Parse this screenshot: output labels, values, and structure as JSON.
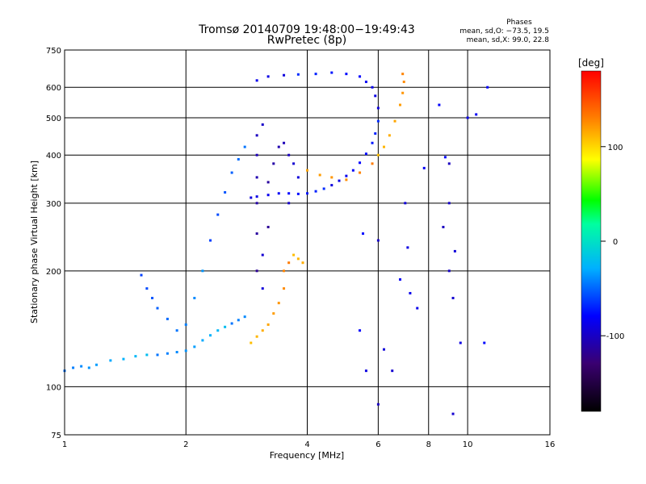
{
  "chart_data": {
    "type": "scatter",
    "title": "Tromsø 20140709 19:48:00−19:49:43",
    "subtitle": "RwPretec (8p)",
    "xlabel": "Frequency [MHz]",
    "ylabel": "Stationary phase Virtual Height [km]",
    "x_scale": "log",
    "y_scale": "log",
    "xlim": [
      1,
      16
    ],
    "ylim": [
      75,
      750
    ],
    "x_ticks": [
      1,
      2,
      4,
      6,
      8,
      10,
      16
    ],
    "y_ticks": [
      75,
      100,
      200,
      300,
      400,
      500,
      600,
      750
    ],
    "grid": true,
    "phase_box": {
      "title": "Phases",
      "line1": "mean, sd,O: −73.5, 19.5",
      "line2": "mean, sd,X:  99.0, 22.8"
    },
    "colorbar": {
      "label": "[deg]",
      "ticks": [
        100,
        0,
        -100
      ],
      "range": [
        -180,
        180
      ],
      "colormap": "rainbow"
    },
    "series": [
      {
        "trace": "lower",
        "phase_deg": -35,
        "points": [
          [
            1.0,
            110
          ],
          [
            1.05,
            112
          ],
          [
            1.1,
            113
          ],
          [
            1.15,
            112
          ],
          [
            1.2,
            114
          ],
          [
            1.3,
            117
          ],
          [
            1.4,
            118
          ],
          [
            1.5,
            120
          ],
          [
            1.6,
            121
          ],
          [
            1.7,
            121
          ],
          [
            1.8,
            122
          ],
          [
            1.9,
            123
          ],
          [
            2.0,
            124
          ],
          [
            2.1,
            127
          ],
          [
            2.2,
            132
          ],
          [
            2.3,
            136
          ],
          [
            2.4,
            140
          ],
          [
            2.5,
            143
          ],
          [
            2.6,
            146
          ],
          [
            2.7,
            149
          ],
          [
            2.8,
            152
          ]
        ]
      },
      {
        "trace": "upper",
        "phase_deg": -80,
        "points": [
          [
            2.9,
            310
          ],
          [
            3.0,
            312
          ],
          [
            3.2,
            315
          ],
          [
            3.4,
            318
          ],
          [
            3.6,
            318
          ],
          [
            3.8,
            317
          ],
          [
            4.0,
            318
          ],
          [
            4.2,
            322
          ],
          [
            4.4,
            327
          ],
          [
            4.6,
            334
          ],
          [
            4.8,
            343
          ],
          [
            5.0,
            353
          ],
          [
            5.2,
            365
          ],
          [
            5.4,
            382
          ],
          [
            5.6,
            403
          ],
          [
            5.8,
            430
          ],
          [
            5.9,
            455
          ],
          [
            6.0,
            490
          ],
          [
            6.0,
            530
          ],
          [
            5.9,
            570
          ],
          [
            5.8,
            600
          ],
          [
            5.6,
            620
          ],
          [
            5.4,
            640
          ],
          [
            5.0,
            650
          ],
          [
            4.6,
            655
          ],
          [
            4.2,
            650
          ],
          [
            3.8,
            648
          ],
          [
            3.5,
            645
          ],
          [
            3.2,
            640
          ],
          [
            3.0,
            625
          ]
        ]
      },
      {
        "trace": "scattered",
        "phase_deg": -50,
        "points": [
          [
            1.55,
            195
          ],
          [
            1.6,
            180
          ],
          [
            1.65,
            170
          ],
          [
            1.7,
            160
          ],
          [
            1.8,
            150
          ],
          [
            1.9,
            140
          ],
          [
            2.0,
            145
          ],
          [
            2.1,
            170
          ],
          [
            2.2,
            200
          ],
          [
            2.3,
            240
          ],
          [
            2.4,
            280
          ],
          [
            2.5,
            320
          ],
          [
            2.6,
            360
          ],
          [
            2.7,
            390
          ],
          [
            2.8,
            420
          ]
        ]
      },
      {
        "trace": "dense-vertical",
        "phase_deg": -105,
        "points": [
          [
            3.0,
            200
          ],
          [
            3.0,
            250
          ],
          [
            3.0,
            300
          ],
          [
            3.0,
            350
          ],
          [
            3.0,
            400
          ],
          [
            3.0,
            450
          ],
          [
            3.1,
            480
          ],
          [
            3.1,
            220
          ],
          [
            3.1,
            180
          ],
          [
            3.2,
            260
          ],
          [
            3.2,
            340
          ],
          [
            3.3,
            380
          ],
          [
            3.4,
            420
          ],
          [
            3.5,
            430
          ],
          [
            3.6,
            400
          ],
          [
            3.6,
            300
          ],
          [
            3.7,
            380
          ],
          [
            3.8,
            350
          ]
        ]
      },
      {
        "trace": "x-mode",
        "phase_deg": 120,
        "points": [
          [
            2.9,
            130
          ],
          [
            3.0,
            135
          ],
          [
            3.1,
            140
          ],
          [
            3.2,
            145
          ],
          [
            3.3,
            155
          ],
          [
            3.4,
            165
          ],
          [
            3.5,
            180
          ],
          [
            3.5,
            200
          ],
          [
            3.6,
            210
          ],
          [
            3.7,
            220
          ],
          [
            3.8,
            215
          ],
          [
            3.9,
            210
          ],
          [
            4.0,
            365
          ],
          [
            4.3,
            355
          ],
          [
            4.6,
            350
          ],
          [
            5.0,
            345
          ],
          [
            5.4,
            360
          ],
          [
            5.8,
            380
          ],
          [
            6.0,
            400
          ],
          [
            6.2,
            420
          ],
          [
            6.4,
            450
          ],
          [
            6.6,
            490
          ],
          [
            6.8,
            540
          ],
          [
            6.9,
            580
          ],
          [
            6.95,
            620
          ],
          [
            6.9,
            650
          ]
        ]
      },
      {
        "trace": "sparse",
        "phase_deg": -90,
        "points": [
          [
            6.0,
            90
          ],
          [
            6.0,
            240
          ],
          [
            6.5,
            110
          ],
          [
            7.0,
            300
          ],
          [
            7.1,
            230
          ],
          [
            7.5,
            160
          ],
          [
            7.8,
            370
          ],
          [
            8.5,
            540
          ],
          [
            8.8,
            395
          ],
          [
            9.0,
            380
          ],
          [
            9.0,
            300
          ],
          [
            9.2,
            85
          ],
          [
            9.3,
            225
          ],
          [
            9.6,
            130
          ],
          [
            10.0,
            500
          ],
          [
            10.5,
            510
          ],
          [
            11.2,
            600
          ],
          [
            11.0,
            130
          ],
          [
            8.7,
            260
          ],
          [
            9.0,
            200
          ],
          [
            9.2,
            170
          ],
          [
            6.2,
            125
          ],
          [
            5.6,
            110
          ],
          [
            7.2,
            175
          ],
          [
            6.8,
            190
          ],
          [
            5.4,
            140
          ],
          [
            5.5,
            250
          ]
        ]
      }
    ]
  }
}
